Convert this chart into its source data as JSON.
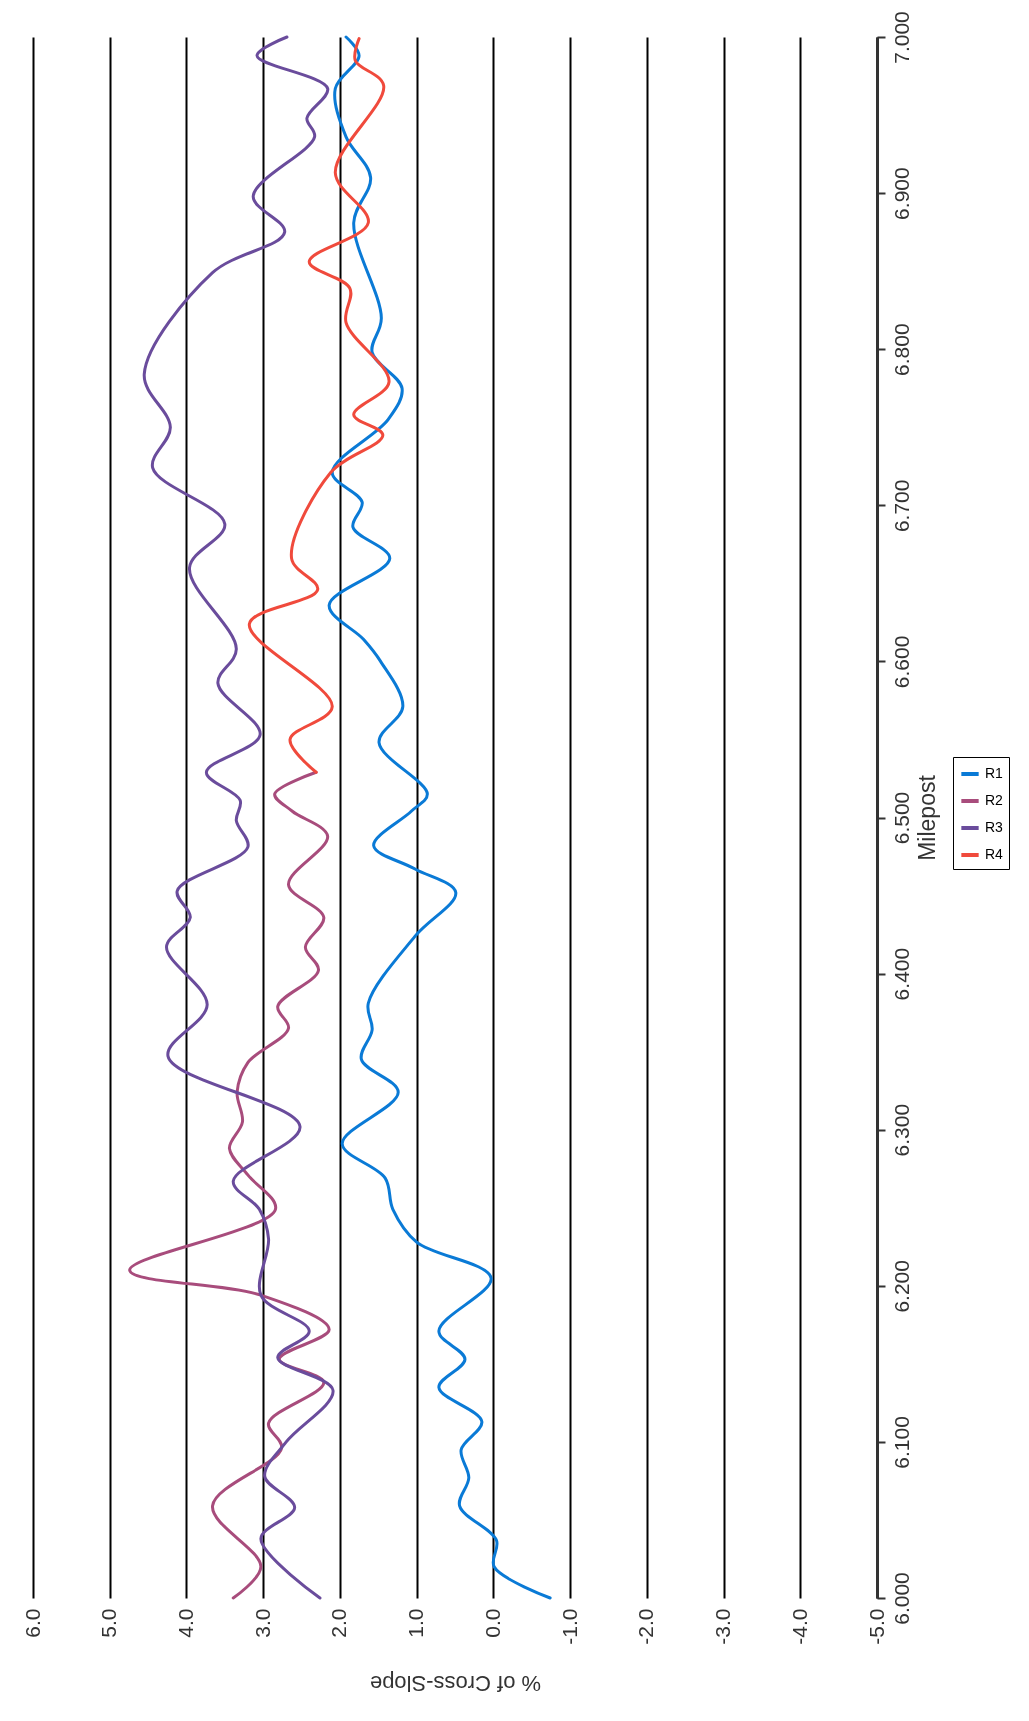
{
  "chart_data": {
    "type": "line",
    "xlabel": "% of Cross-Slope",
    "ylabel": "Milepost",
    "xlim": [
      6,
      -5
    ],
    "ylim": [
      6,
      7
    ],
    "xticks": [
      {
        "value": 6,
        "label": "6.0"
      },
      {
        "value": 5,
        "label": "5.0"
      },
      {
        "value": 4,
        "label": "4.0"
      },
      {
        "value": 3,
        "label": "3.0"
      },
      {
        "value": 2,
        "label": "2.0"
      },
      {
        "value": 1,
        "label": "1.0"
      },
      {
        "value": 0,
        "label": "0.0"
      },
      {
        "value": -1,
        "label": "-1.0"
      },
      {
        "value": -2,
        "label": "-2.0"
      },
      {
        "value": -3,
        "label": "-3.0"
      },
      {
        "value": -4,
        "label": "-4.0"
      },
      {
        "value": -5,
        "label": "-5.0"
      }
    ],
    "yticks": [
      {
        "value": 6,
        "label": "6.000"
      },
      {
        "value": 6.1,
        "label": "6.100"
      },
      {
        "value": 6.2,
        "label": "6.200"
      },
      {
        "value": 6.3,
        "label": "6.300"
      },
      {
        "value": 6.4,
        "label": "6.400"
      },
      {
        "value": 6.5,
        "label": "6.500"
      },
      {
        "value": 6.6,
        "label": "6.600"
      },
      {
        "value": 6.7,
        "label": "6.700"
      },
      {
        "value": 6.8,
        "label": "6.800"
      },
      {
        "value": 6.9,
        "label": "6.900"
      },
      {
        "value": 7,
        "label": "7.000"
      }
    ],
    "grid": "x",
    "legend": "right",
    "series": [
      {
        "name": "R1",
        "color": "#0a7ad6",
        "values": [
          6.0,
          6.02,
          6.037,
          6.059,
          6.077,
          6.095,
          6.113,
          6.135,
          6.153,
          6.171,
          6.205,
          6.228,
          6.249,
          6.269,
          6.291,
          6.324,
          6.345,
          6.364,
          6.381,
          6.424,
          6.452,
          6.467,
          6.482,
          6.504,
          6.515,
          6.548,
          6.571,
          6.6,
          6.614,
          6.636,
          6.666,
          6.686,
          6.702,
          6.721,
          6.755,
          6.775,
          6.798,
          6.82,
          6.881,
          6.91,
          6.936,
          6.967,
          6.988,
          7.0
        ],
        "x": [
          -0.74,
          -0.01,
          -0.04,
          0.44,
          0.32,
          0.42,
          0.15,
          0.71,
          0.37,
          0.71,
          0.03,
          1.0,
          1.31,
          1.41,
          1.97,
          1.24,
          1.72,
          1.58,
          1.63,
          1.02,
          0.49,
          1.02,
          1.56,
          1.07,
          0.86,
          1.49,
          1.18,
          1.47,
          1.69,
          2.14,
          1.35,
          1.83,
          1.71,
          2.1,
          1.37,
          1.19,
          1.58,
          1.46,
          1.82,
          1.6,
          1.92,
          2.06,
          1.75,
          1.92
        ]
      },
      {
        "name": "R2",
        "color": "#a84c7c",
        "values": [
          6.0,
          6.02,
          6.059,
          6.096,
          6.112,
          6.138,
          6.153,
          6.172,
          6.194,
          6.21,
          6.249,
          6.271,
          6.288,
          6.305,
          6.324,
          6.343,
          6.365,
          6.379,
          6.402,
          6.417,
          6.436,
          6.457,
          6.488,
          6.504,
          6.515,
          6.529
        ],
        "x": [
          3.39,
          3.03,
          3.66,
          2.76,
          2.93,
          2.21,
          2.79,
          2.14,
          3.03,
          4.74,
          2.84,
          3.2,
          3.44,
          3.27,
          3.34,
          3.2,
          2.67,
          2.81,
          2.28,
          2.45,
          2.21,
          2.67,
          2.16,
          2.62,
          2.85,
          2.31
        ]
      },
      {
        "name": "R3",
        "color": "#6a4c9c",
        "values": [
          6.0,
          6.038,
          6.058,
          6.078,
          6.1,
          6.133,
          6.154,
          6.171,
          6.194,
          6.23,
          6.249,
          6.267,
          6.302,
          6.347,
          6.38,
          6.417,
          6.436,
          6.453,
          6.481,
          6.498,
          6.511,
          6.529,
          6.553,
          6.586,
          6.608,
          6.66,
          6.688,
          6.724,
          6.75,
          6.784,
          6.849,
          6.875,
          6.898,
          6.936,
          6.948,
          6.967,
          6.988,
          7.0
        ],
        "x": [
          2.26,
          3.03,
          2.59,
          2.98,
          2.7,
          2.09,
          2.81,
          2.4,
          3.03,
          2.93,
          3.05,
          3.39,
          2.52,
          4.24,
          3.73,
          4.26,
          3.95,
          4.12,
          3.2,
          3.35,
          3.3,
          3.74,
          3.04,
          3.59,
          3.35,
          3.96,
          3.5,
          4.44,
          4.21,
          4.55,
          3.66,
          2.72,
          3.13,
          2.33,
          2.43,
          2.16,
          3.08,
          2.69
        ]
      },
      {
        "name": "R4",
        "color": "#f04a3c",
        "values": [
          6.529,
          6.55,
          6.571,
          6.624,
          6.646,
          6.666,
          6.721,
          6.745,
          6.758,
          6.779,
          6.817,
          6.839,
          6.856,
          6.881,
          6.913,
          6.969,
          6.985,
          6.999
        ],
        "x": [
          2.31,
          2.65,
          2.1,
          3.18,
          2.29,
          2.63,
          2.12,
          1.44,
          1.82,
          1.36,
          1.92,
          1.87,
          2.4,
          1.63,
          2.06,
          1.43,
          1.8,
          1.75
        ]
      }
    ]
  }
}
